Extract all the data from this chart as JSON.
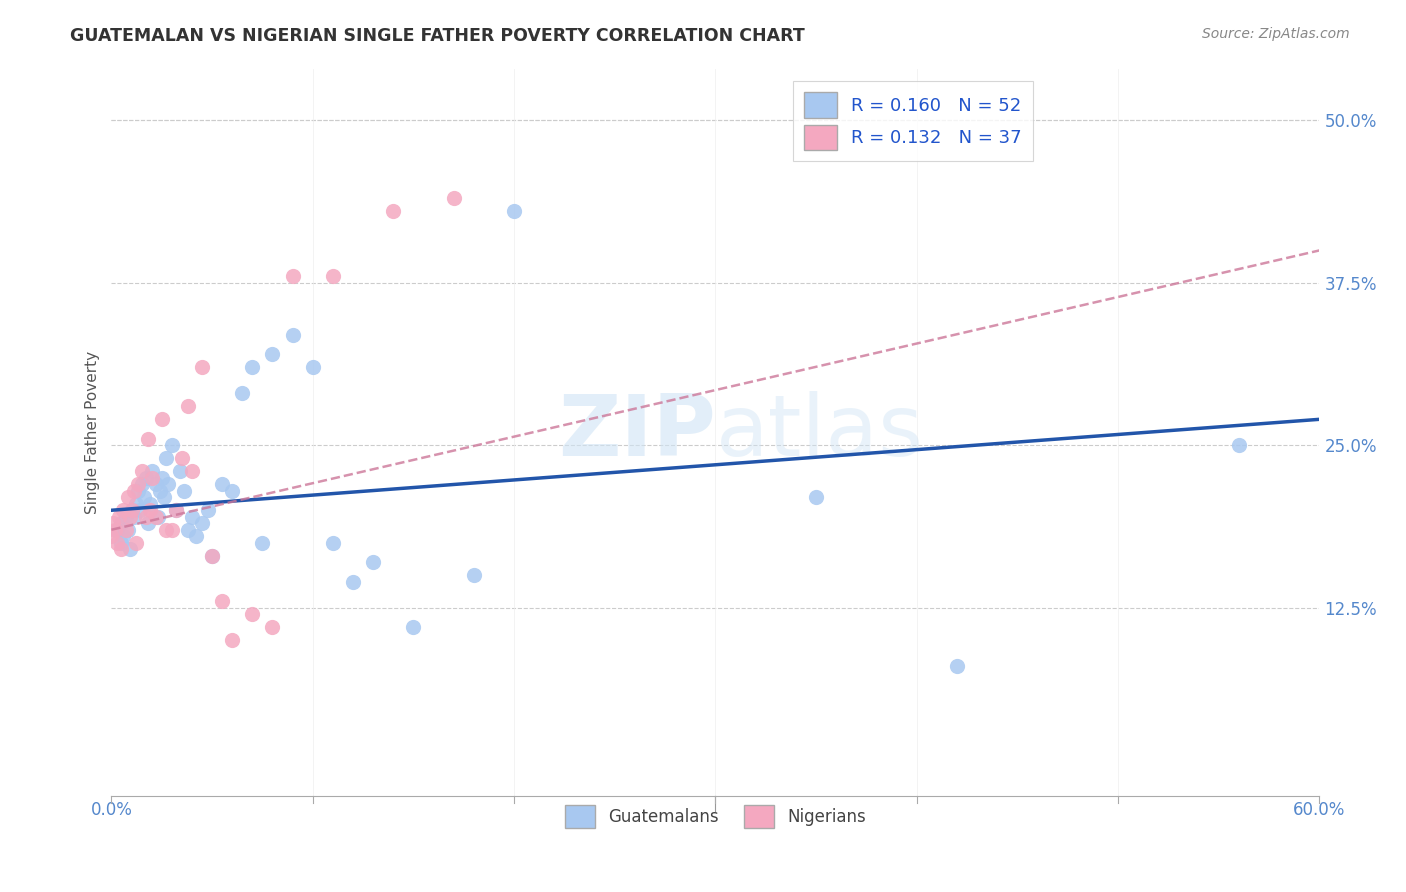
{
  "title": "GUATEMALAN VS NIGERIAN SINGLE FATHER POVERTY CORRELATION CHART",
  "source": "Source: ZipAtlas.com",
  "ylabel": "Single Father Poverty",
  "xlim": [
    0.0,
    0.6
  ],
  "ylim": [
    -0.02,
    0.54
  ],
  "xtick_vals": [
    0.0,
    0.1,
    0.2,
    0.3,
    0.4,
    0.5,
    0.6
  ],
  "xtick_labels": [
    "0.0%",
    "",
    "",
    "",
    "",
    "",
    "60.0%"
  ],
  "ytick_vals": [
    0.125,
    0.25,
    0.375,
    0.5
  ],
  "ytick_labels": [
    "12.5%",
    "25.0%",
    "37.5%",
    "50.0%"
  ],
  "guatemalan_R": 0.16,
  "guatemalan_N": 52,
  "nigerian_R": 0.132,
  "nigerian_N": 37,
  "guatemalan_color": "#a8c8f0",
  "nigerian_color": "#f4a8c0",
  "guatemalan_line_color": "#2255aa",
  "nigerian_line_color": "#cc7799",
  "guatemalans_x": [
    0.003,
    0.005,
    0.005,
    0.006,
    0.007,
    0.008,
    0.009,
    0.01,
    0.011,
    0.012,
    0.013,
    0.014,
    0.015,
    0.016,
    0.017,
    0.018,
    0.019,
    0.02,
    0.022,
    0.023,
    0.024,
    0.025,
    0.026,
    0.027,
    0.028,
    0.03,
    0.032,
    0.034,
    0.036,
    0.038,
    0.04,
    0.042,
    0.045,
    0.048,
    0.05,
    0.055,
    0.06,
    0.065,
    0.07,
    0.075,
    0.08,
    0.09,
    0.1,
    0.11,
    0.12,
    0.13,
    0.15,
    0.18,
    0.2,
    0.35,
    0.42,
    0.56
  ],
  "guatemalans_y": [
    0.185,
    0.175,
    0.19,
    0.18,
    0.195,
    0.185,
    0.17,
    0.2,
    0.195,
    0.205,
    0.215,
    0.2,
    0.22,
    0.21,
    0.225,
    0.19,
    0.205,
    0.23,
    0.22,
    0.195,
    0.215,
    0.225,
    0.21,
    0.24,
    0.22,
    0.25,
    0.2,
    0.23,
    0.215,
    0.185,
    0.195,
    0.18,
    0.19,
    0.2,
    0.165,
    0.22,
    0.215,
    0.29,
    0.31,
    0.175,
    0.32,
    0.335,
    0.31,
    0.175,
    0.145,
    0.16,
    0.11,
    0.15,
    0.43,
    0.21,
    0.08,
    0.25
  ],
  "nigerians_x": [
    0.0,
    0.001,
    0.002,
    0.003,
    0.004,
    0.005,
    0.006,
    0.007,
    0.008,
    0.009,
    0.01,
    0.011,
    0.012,
    0.013,
    0.015,
    0.017,
    0.018,
    0.019,
    0.02,
    0.022,
    0.025,
    0.027,
    0.03,
    0.032,
    0.035,
    0.038,
    0.04,
    0.045,
    0.05,
    0.055,
    0.06,
    0.07,
    0.08,
    0.09,
    0.11,
    0.14,
    0.17
  ],
  "nigerians_y": [
    0.18,
    0.19,
    0.185,
    0.175,
    0.195,
    0.17,
    0.2,
    0.185,
    0.21,
    0.195,
    0.2,
    0.215,
    0.175,
    0.22,
    0.23,
    0.195,
    0.255,
    0.2,
    0.225,
    0.195,
    0.27,
    0.185,
    0.185,
    0.2,
    0.24,
    0.28,
    0.23,
    0.31,
    0.165,
    0.13,
    0.1,
    0.12,
    0.11,
    0.38,
    0.38,
    0.43,
    0.44
  ]
}
